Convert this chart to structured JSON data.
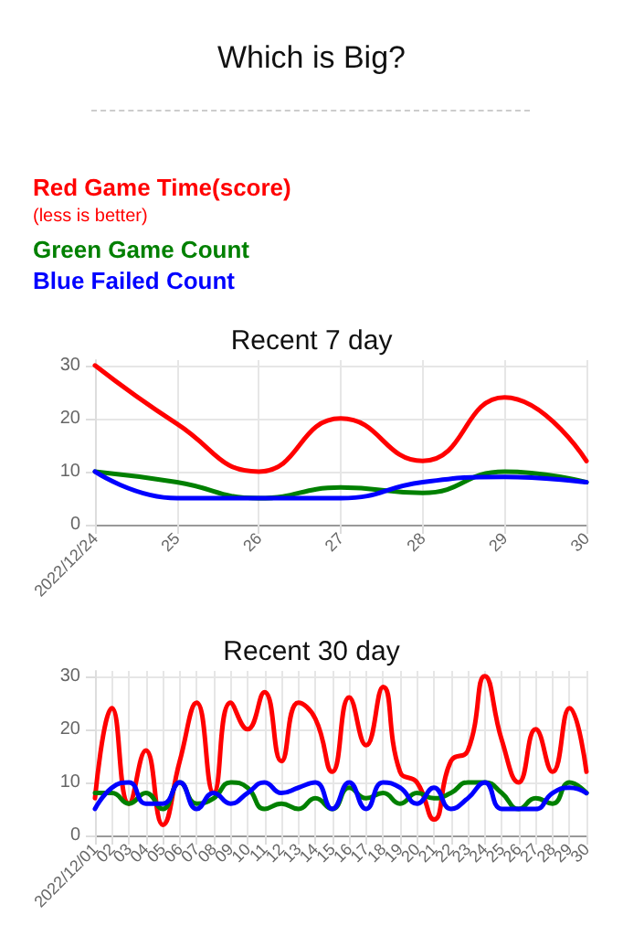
{
  "chart_data": [
    {
      "type": "other",
      "title": "Which is Big?",
      "annotations": [
        "Red Game Time(score)",
        "(less is better)",
        "Green Game Count",
        "Blue Failed Count"
      ]
    },
    {
      "type": "line",
      "title": "Recent 7 day",
      "categories": [
        "2022/12/24",
        "25",
        "26",
        "27",
        "28",
        "29",
        "30"
      ],
      "series": [
        {
          "color": "#ff0000",
          "values": [
            30,
            19,
            10,
            20,
            12,
            24,
            12
          ]
        },
        {
          "color": "#008000",
          "values": [
            10,
            8,
            5,
            7,
            6,
            10,
            8
          ]
        },
        {
          "color": "#0000ff",
          "values": [
            10,
            5,
            5,
            5,
            8,
            9,
            8
          ]
        }
      ],
      "ylim": [
        0,
        31
      ],
      "yticks": [
        0,
        10,
        20,
        30
      ],
      "grid": true,
      "marker": "none",
      "line_style": "solid"
    },
    {
      "type": "line",
      "title": "Recent 30 day",
      "categories": [
        "2022/12/01",
        "02",
        "03",
        "04",
        "05",
        "06",
        "07",
        "08",
        "09",
        "10",
        "11",
        "12",
        "13",
        "14",
        "15",
        "16",
        "17",
        "18",
        "19",
        "20",
        "21",
        "22",
        "23",
        "24",
        "25",
        "26",
        "27",
        "28",
        "29",
        "30"
      ],
      "series": [
        {
          "color": "#ff0000",
          "values": [
            7,
            24,
            6,
            16,
            2,
            14,
            25,
            8,
            25,
            20,
            27,
            14,
            25,
            22,
            12,
            26,
            17,
            28,
            12,
            10,
            3,
            14,
            16,
            30,
            18,
            10,
            20,
            12,
            24,
            12
          ]
        },
        {
          "color": "#008000",
          "values": [
            8,
            8,
            6,
            8,
            5,
            10,
            6,
            7,
            10,
            9,
            5,
            6,
            5,
            7,
            5,
            9,
            7,
            8,
            6,
            8,
            7,
            8,
            10,
            10,
            8,
            5,
            7,
            6,
            10,
            8
          ]
        },
        {
          "color": "#0000ff",
          "values": [
            5,
            9,
            10,
            6,
            6,
            10,
            5,
            8,
            6,
            8,
            10,
            8,
            9,
            10,
            5,
            10,
            5,
            10,
            9,
            6,
            9,
            5,
            7,
            10,
            5,
            5,
            5,
            8,
            9,
            8
          ]
        }
      ],
      "ylim": [
        0,
        31
      ],
      "yticks": [
        0,
        10,
        20,
        30
      ],
      "grid": true,
      "marker": "none",
      "line_style": "solid"
    }
  ]
}
